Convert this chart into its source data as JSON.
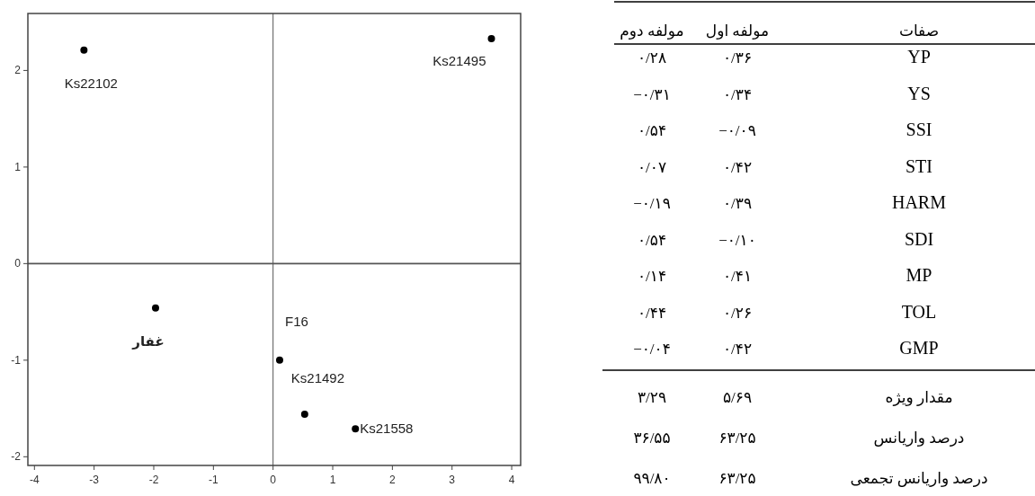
{
  "chart_data": [
    {
      "type": "scatter",
      "x": [
        -3.17,
        3.66,
        -1.97,
        0.11,
        0.53,
        1.38
      ],
      "values": [
        2.21,
        2.33,
        -0.46,
        -1.0,
        -1.56,
        -1.71
      ],
      "color": "#000000",
      "marker": "circle",
      "xlim": [
        -4.11,
        4.15
      ],
      "ylim": [
        -2.09,
        2.59
      ],
      "xticks": [
        -4,
        -3,
        -2,
        -1,
        0,
        1,
        2,
        3,
        4
      ],
      "yticks": [
        -2,
        -1,
        0,
        1,
        2
      ],
      "grid": false,
      "ref_lines": [
        {
          "axis": "x",
          "value": 0,
          "color": "#555555"
        },
        {
          "axis": "y",
          "value": 0,
          "color": "#555555"
        }
      ],
      "annotations": [
        {
          "text": "Ks22102",
          "x": -3.17,
          "y": 2.21
        },
        {
          "text": "Ks21495",
          "x": 3.66,
          "y": 2.33
        },
        {
          "text": "غفار",
          "x": -1.97,
          "y": -0.46
        },
        {
          "text": "F16",
          "x": 0.11,
          "y": -1.0
        },
        {
          "text": "Ks21492",
          "x": 0.53,
          "y": -1.56
        },
        {
          "text": "Ks21558",
          "x": 1.38,
          "y": -1.71
        }
      ]
    },
    {
      "type": "other",
      "annotations": [
        "مولفه دوم",
        "مولفه اول",
        "صفات",
        "۰/۲۸",
        "۰/۳۶",
        "YP",
        "−۰/۳۱",
        "۰/۳۴",
        "YS",
        "۰/۵۴",
        "−۰/۰۹",
        "SSI",
        "۰/۰۷",
        "۰/۴۲",
        "STI",
        "−۰/۱۹",
        "۰/۳۹",
        "HARM",
        "۰/۵۴",
        "−۰/۱۰",
        "SDI",
        "۰/۱۴",
        "۰/۴۱",
        "MP",
        "۰/۴۴",
        "۰/۲۶",
        "TOL",
        "−۰/۰۴",
        "۰/۴۲",
        "GMP",
        "۳/۲۹",
        "۵/۶۹",
        "مقدار ویژه",
        "۳۶/۵۵",
        "۶۳/۲۵",
        "درصد واریانس",
        "۹۹/۸۰",
        "۶۳/۲۵",
        "درصد واریانس تجمعی"
      ]
    }
  ]
}
